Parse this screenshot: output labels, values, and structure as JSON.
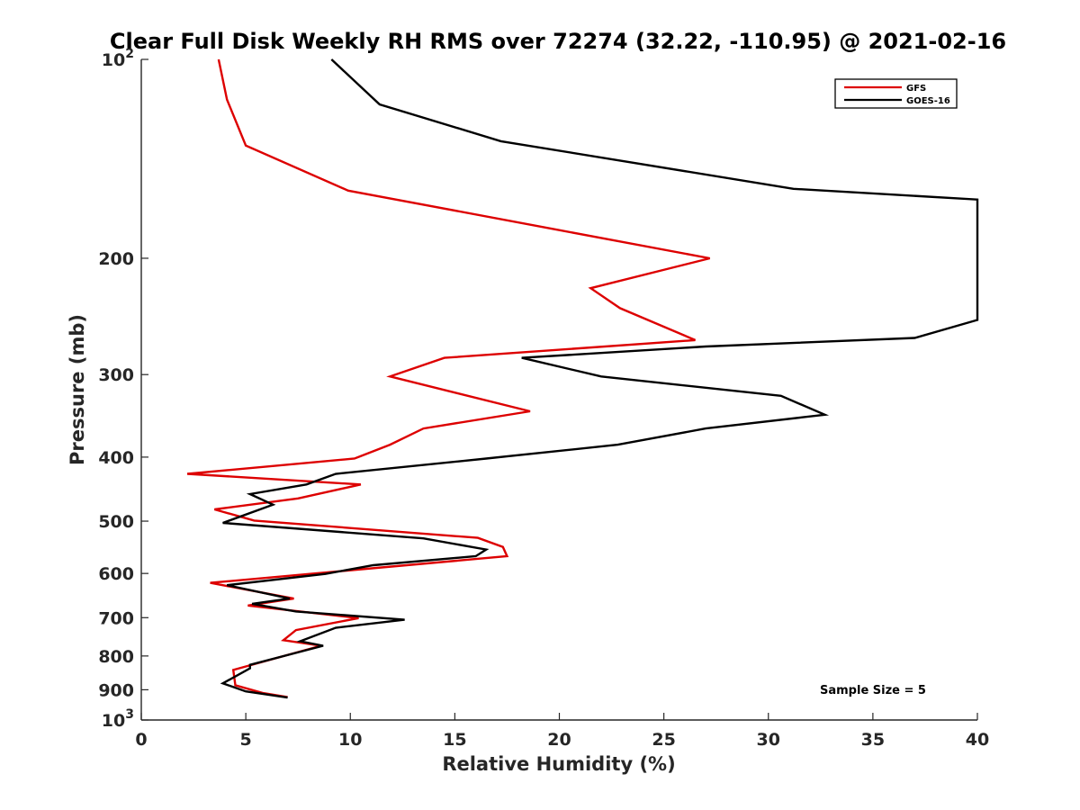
{
  "chart_data": {
    "type": "line",
    "title": "Clear Full Disk Weekly RH RMS over 72274 (32.22, -110.95) @ 2021-02-16",
    "xlabel": "Relative Humidity (%)",
    "ylabel": "Pressure (mb)",
    "xlim": [
      0,
      40
    ],
    "ylim": [
      100,
      1000
    ],
    "y_scale": "log",
    "y_reversed": true,
    "x_ticks": [
      "0",
      "5",
      "10",
      "15",
      "20",
      "25",
      "30",
      "35",
      "40"
    ],
    "y_ticks": [
      {
        "value": 100,
        "base": "10",
        "exp": "2"
      },
      {
        "value": 200,
        "label": "200"
      },
      {
        "value": 300,
        "label": "300"
      },
      {
        "value": 400,
        "label": "400"
      },
      {
        "value": 500,
        "label": "500"
      },
      {
        "value": 600,
        "label": "600"
      },
      {
        "value": 700,
        "label": "700"
      },
      {
        "value": 800,
        "label": "800"
      },
      {
        "value": 900,
        "label": "900"
      },
      {
        "value": 1000,
        "base": "10",
        "exp": "3"
      }
    ],
    "grid": false,
    "legend_position": "top-right",
    "series": [
      {
        "name": "GFS",
        "color": "#dd0000",
        "points": [
          [
            3.7,
            100
          ],
          [
            4.1,
            115
          ],
          [
            5.0,
            135
          ],
          [
            9.9,
            158
          ],
          [
            27.2,
            200
          ],
          [
            21.5,
            222
          ],
          [
            22.9,
            238
          ],
          [
            26.5,
            266
          ],
          [
            14.5,
            283
          ],
          [
            11.9,
            302
          ],
          [
            18.6,
            341
          ],
          [
            13.5,
            362
          ],
          [
            11.9,
            383
          ],
          [
            10.2,
            402
          ],
          [
            2.2,
            424
          ],
          [
            10.5,
            440
          ],
          [
            7.5,
            462
          ],
          [
            3.5,
            480
          ],
          [
            5.4,
            499
          ],
          [
            16.1,
            530
          ],
          [
            17.3,
            547
          ],
          [
            17.5,
            565
          ],
          [
            3.3,
            620
          ],
          [
            7.3,
            655
          ],
          [
            5.1,
            671
          ],
          [
            10.4,
            701
          ],
          [
            7.4,
            731
          ],
          [
            6.8,
            757
          ],
          [
            8.6,
            772
          ],
          [
            4.4,
            840
          ],
          [
            4.5,
            886
          ],
          [
            5.8,
            910
          ],
          [
            7.0,
            923
          ]
        ]
      },
      {
        "name": "GOES-16",
        "color": "#000000",
        "points": [
          [
            9.1,
            100
          ],
          [
            11.4,
            117
          ],
          [
            17.2,
            133
          ],
          [
            31.2,
            157
          ],
          [
            40.0,
            163
          ],
          [
            40.0,
            248
          ],
          [
            37.0,
            264
          ],
          [
            27.0,
            272
          ],
          [
            18.2,
            283
          ],
          [
            22.0,
            302
          ],
          [
            30.6,
            323
          ],
          [
            32.7,
            345
          ],
          [
            27.0,
            362
          ],
          [
            22.8,
            383
          ],
          [
            16.5,
            402
          ],
          [
            9.3,
            424
          ],
          [
            7.9,
            440
          ],
          [
            5.2,
            455
          ],
          [
            6.3,
            472
          ],
          [
            3.9,
            503
          ],
          [
            13.5,
            531
          ],
          [
            16.5,
            552
          ],
          [
            16.0,
            565
          ],
          [
            11.1,
            583
          ],
          [
            8.8,
            601
          ],
          [
            4.1,
            625
          ],
          [
            7.1,
            655
          ],
          [
            5.3,
            667
          ],
          [
            7.4,
            685
          ],
          [
            12.6,
            705
          ],
          [
            9.3,
            725
          ],
          [
            7.6,
            760
          ],
          [
            8.7,
            772
          ],
          [
            5.2,
            825
          ],
          [
            5.2,
            835
          ],
          [
            3.9,
            880
          ],
          [
            5.0,
            905
          ],
          [
            7.0,
            925
          ]
        ]
      }
    ],
    "annotation": "Sample Size = 5"
  }
}
